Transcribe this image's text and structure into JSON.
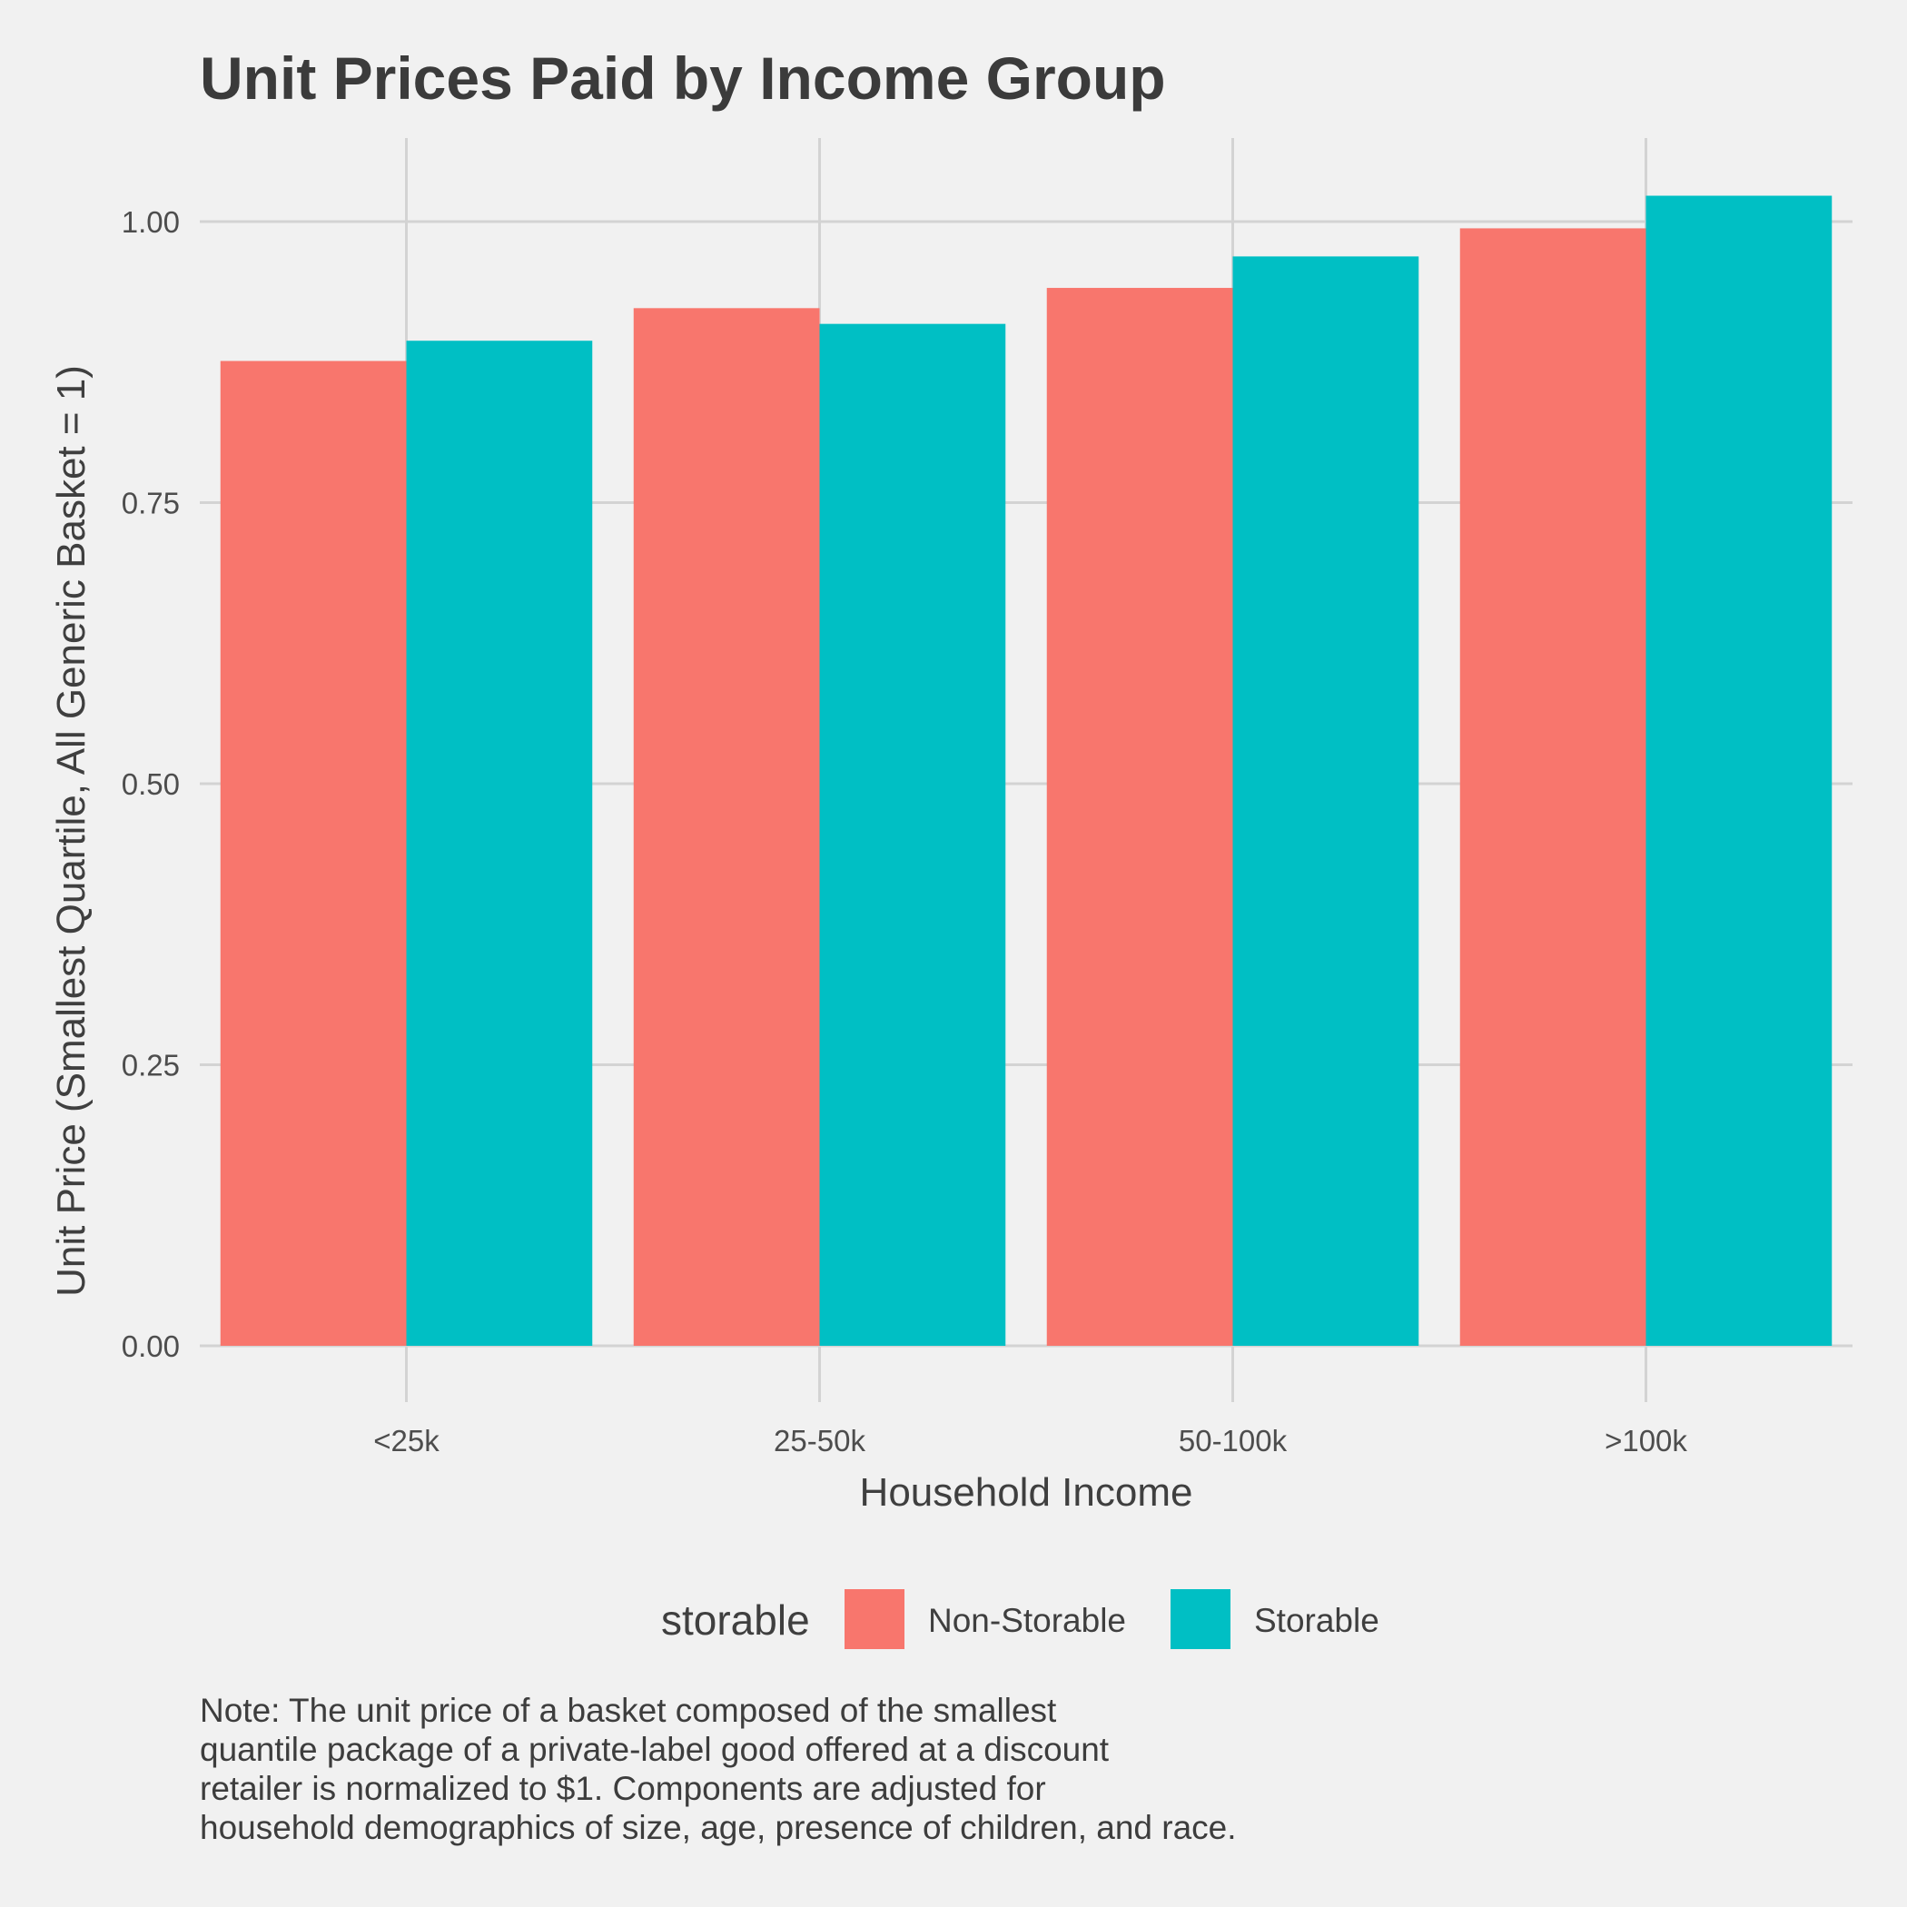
{
  "chart_data": {
    "type": "bar",
    "title": "Unit Prices Paid by Income Group",
    "xlabel": "Household Income",
    "ylabel": "Unit Price (Smallest Quartile, All Generic Basket = 1)",
    "categories": [
      "<25k",
      "25-50k",
      "50-100k",
      ">100k"
    ],
    "series": [
      {
        "name": "Non-Storable",
        "color": "#F8766D",
        "values": [
          0.876,
          0.923,
          0.941,
          0.994
        ]
      },
      {
        "name": "Storable",
        "color": "#00BFC4",
        "values": [
          0.894,
          0.909,
          0.969,
          1.023
        ]
      }
    ],
    "ylim": [
      0,
      1.07
    ],
    "yticks": [
      0.0,
      0.25,
      0.5,
      0.75,
      1.0
    ],
    "ytick_labels": [
      "0.00",
      "0.25",
      "0.50",
      "0.75",
      "1.00"
    ],
    "grid": true,
    "legend": {
      "title": "storable",
      "position": "bottom"
    }
  },
  "note": [
    "Note: The unit price of a basket composed of the smallest",
    "quantile package of a private-label good offered at a discount",
    "retailer is normalized to $1. Components are adjusted for",
    "household demographics of size, age, presence of children, and race."
  ]
}
